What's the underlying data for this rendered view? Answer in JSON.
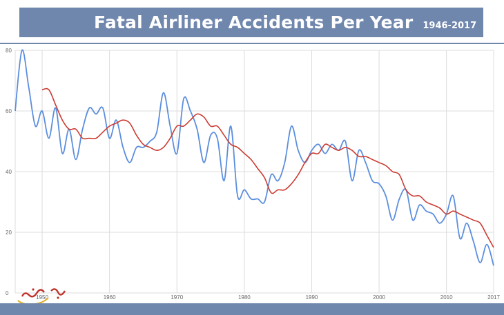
{
  "title": {
    "main": "Fatal Airliner Accidents Per Year",
    "years": "1946-2017"
  },
  "colors": {
    "banner": "#6f86ad",
    "yearly": "#5b8ede",
    "trend": "#cc3b32",
    "grid": "#dcdcdc"
  },
  "chart_data": {
    "type": "line",
    "title": "Fatal Airliner Accidents Per Year",
    "subtitle": "1946-2017",
    "xlabel": "",
    "ylabel": "",
    "xlim": [
      1946,
      2017
    ],
    "ylim": [
      0,
      80
    ],
    "grid": true,
    "x_ticks": [
      1950,
      1960,
      1970,
      1980,
      1990,
      2000,
      2010,
      2017
    ],
    "x_tick_labels": [
      "1950",
      "1960",
      "1970",
      "1980",
      "1990",
      "2000",
      "2010",
      "2017"
    ],
    "y_ticks": [
      0,
      20,
      40,
      60,
      80
    ],
    "series": [
      {
        "key": "yearly",
        "x": [
          1946,
          1947,
          1948,
          1949,
          1950,
          1951,
          1952,
          1953,
          1954,
          1955,
          1956,
          1957,
          1958,
          1959,
          1960,
          1961,
          1962,
          1963,
          1964,
          1965,
          1966,
          1967,
          1968,
          1969,
          1970,
          1971,
          1972,
          1973,
          1974,
          1975,
          1976,
          1977,
          1978,
          1979,
          1980,
          1981,
          1982,
          1983,
          1984,
          1985,
          1986,
          1987,
          1988,
          1989,
          1990,
          1991,
          1992,
          1993,
          1994,
          1995,
          1996,
          1997,
          1998,
          1999,
          2000,
          2001,
          2002,
          2003,
          2004,
          2005,
          2006,
          2007,
          2008,
          2009,
          2010,
          2011,
          2012,
          2013,
          2014,
          2015,
          2016,
          2017
        ],
        "values": [
          60,
          80,
          68,
          55,
          60,
          51,
          61,
          46,
          54,
          44,
          54,
          61,
          59,
          61,
          51,
          57,
          48,
          43,
          48,
          48,
          50,
          53,
          66,
          55,
          46,
          64,
          60,
          54,
          43,
          52,
          51,
          37,
          55,
          32,
          34,
          31,
          31,
          30,
          39,
          37,
          43,
          55,
          47,
          43,
          47,
          49,
          46,
          49,
          47,
          50,
          37,
          47,
          43,
          37,
          36,
          32,
          24,
          31,
          34,
          24,
          29,
          27,
          26,
          23,
          26,
          32,
          18,
          23,
          17,
          10,
          16,
          9
        ]
      },
      {
        "key": "trend",
        "x": [
          1950,
          1951,
          1952,
          1953,
          1954,
          1955,
          1956,
          1957,
          1958,
          1959,
          1960,
          1961,
          1962,
          1963,
          1964,
          1965,
          1966,
          1967,
          1968,
          1969,
          1970,
          1971,
          1972,
          1973,
          1974,
          1975,
          1976,
          1977,
          1978,
          1979,
          1980,
          1981,
          1982,
          1983,
          1984,
          1985,
          1986,
          1987,
          1988,
          1989,
          1990,
          1991,
          1992,
          1993,
          1994,
          1995,
          1996,
          1997,
          1998,
          1999,
          2000,
          2001,
          2002,
          2003,
          2004,
          2005,
          2006,
          2007,
          2008,
          2009,
          2010,
          2011,
          2012,
          2013,
          2014,
          2015,
          2016,
          2017
        ],
        "values": [
          67,
          67,
          62,
          57,
          54,
          54,
          51,
          51,
          51,
          53,
          55,
          56,
          57,
          56,
          52,
          49,
          48,
          47,
          48,
          51,
          55,
          55,
          57,
          59,
          58,
          55,
          55,
          52,
          49,
          48,
          46,
          44,
          41,
          38,
          33,
          34,
          34,
          36,
          39,
          43,
          46,
          46,
          49,
          48,
          47,
          48,
          47,
          45,
          45,
          44,
          43,
          42,
          40,
          39,
          34,
          32,
          32,
          30,
          29,
          28,
          26,
          27,
          26,
          25,
          24,
          23,
          19,
          15
        ]
      }
    ]
  }
}
